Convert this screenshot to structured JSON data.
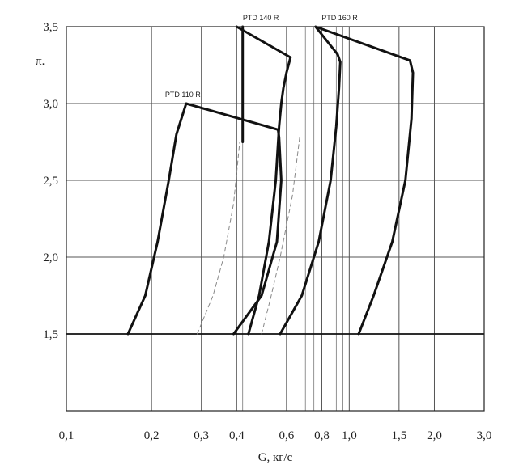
{
  "chart_data": {
    "type": "line",
    "title": "",
    "xlabel": "G, кг/с",
    "ylabel": "π.",
    "x_scale": "log",
    "xlim": [
      0.1,
      3.0
    ],
    "ylim": [
      1.0,
      3.5
    ],
    "grid": true,
    "x_ticks": [
      {
        "value": 0.1,
        "label": "0,1"
      },
      {
        "value": 0.2,
        "label": "0,2"
      },
      {
        "value": 0.3,
        "label": "0,3"
      },
      {
        "value": 0.4,
        "label": "0,4"
      },
      {
        "value": 0.6,
        "label": "0,6"
      },
      {
        "value": 0.8,
        "label": "0,8"
      },
      {
        "value": 1.0,
        "label": "1,0"
      },
      {
        "value": 1.5,
        "label": "1,5"
      },
      {
        "value": 2.0,
        "label": "2,0"
      },
      {
        "value": 3.0,
        "label": "3,0"
      }
    ],
    "x_minor_gridlines": [
      0.42,
      0.7,
      0.75,
      0.9,
      0.95
    ],
    "y_ticks": [
      {
        "value": 1.5,
        "label": "1,5"
      },
      {
        "value": 2.0,
        "label": "2,0"
      },
      {
        "value": 2.5,
        "label": "2,5"
      },
      {
        "value": 3.0,
        "label": "3,0"
      },
      {
        "value": 3.5,
        "label": "3,5"
      }
    ],
    "series": [
      {
        "name": "PTD 110 R",
        "color": "#111111",
        "points": [
          [
            0.165,
            1.5
          ],
          [
            0.19,
            1.75
          ],
          [
            0.21,
            2.1
          ],
          [
            0.23,
            2.5
          ],
          [
            0.245,
            2.8
          ],
          [
            0.265,
            3.0
          ],
          [
            0.56,
            2.83
          ],
          [
            0.565,
            2.78
          ],
          [
            0.575,
            2.5
          ],
          [
            0.555,
            2.1
          ],
          [
            0.49,
            1.75
          ],
          [
            0.39,
            1.5
          ]
        ]
      },
      {
        "name": "PTD 140 R",
        "color": "#111111",
        "points": [
          [
            0.44,
            1.5
          ],
          [
            0.48,
            1.75
          ],
          [
            0.52,
            2.1
          ],
          [
            0.55,
            2.5
          ],
          [
            0.565,
            2.85
          ],
          [
            0.575,
            3.0
          ],
          [
            0.585,
            3.1
          ],
          [
            0.6,
            3.2
          ],
          [
            0.62,
            3.3
          ],
          [
            0.4,
            3.5
          ]
        ]
      },
      {
        "name": "PTD 160 R",
        "color": "#111111",
        "points": [
          [
            0.57,
            1.5
          ],
          [
            0.68,
            1.75
          ],
          [
            0.78,
            2.1
          ],
          [
            0.86,
            2.5
          ],
          [
            0.9,
            2.85
          ],
          [
            0.92,
            3.1
          ],
          [
            0.93,
            3.27
          ],
          [
            0.91,
            3.32
          ],
          [
            0.76,
            3.5
          ],
          [
            1.64,
            3.28
          ],
          [
            1.68,
            3.2
          ],
          [
            1.66,
            2.9
          ],
          [
            1.58,
            2.5
          ],
          [
            1.42,
            2.1
          ],
          [
            1.22,
            1.75
          ],
          [
            1.08,
            1.5
          ]
        ]
      },
      {
        "name": "",
        "color": "#111111",
        "points": [
          [
            0.42,
            2.75
          ],
          [
            0.42,
            3.5
          ]
        ]
      },
      {
        "name": "",
        "color": "#888888",
        "dashed": true,
        "points": [
          [
            0.29,
            1.5
          ],
          [
            0.33,
            1.75
          ],
          [
            0.36,
            2.0
          ],
          [
            0.39,
            2.35
          ],
          [
            0.41,
            2.75
          ]
        ]
      },
      {
        "name": "",
        "color": "#888888",
        "dashed": true,
        "points": [
          [
            0.49,
            1.5
          ],
          [
            0.53,
            1.75
          ],
          [
            0.57,
            2.0
          ],
          [
            0.63,
            2.4
          ],
          [
            0.67,
            2.8
          ]
        ]
      }
    ],
    "series_labels": [
      {
        "text": "PTD 110 R",
        "x": 0.265,
        "y": 3.0
      },
      {
        "text": "PTD 140 R",
        "x": 0.5,
        "y": 3.5
      },
      {
        "text": "PTD 160 R",
        "x": 0.95,
        "y": 3.5
      }
    ],
    "reference_line": {
      "y": 1.5,
      "color": "#111111"
    }
  }
}
